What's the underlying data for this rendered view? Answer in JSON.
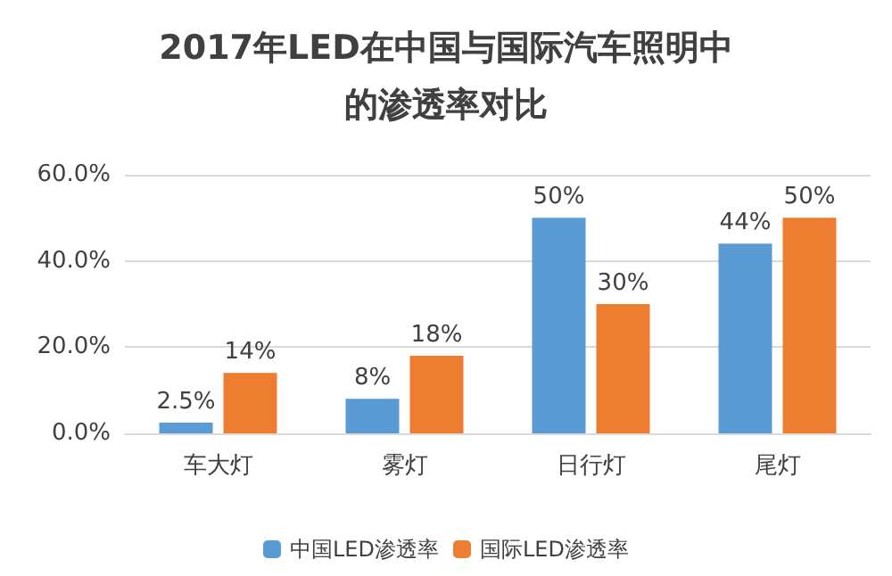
{
  "chart_data": {
    "type": "bar",
    "title": "2017年LED在中国与国际汽车照明中的渗透率对比",
    "categories": [
      "车大灯",
      "雾灯",
      "日行灯",
      "尾灯"
    ],
    "series": [
      {
        "name": "中国LED渗透率",
        "color": "#5b9bd5",
        "values": [
          2.5,
          8,
          50,
          44
        ],
        "value_labels": [
          "2.5%",
          "8%",
          "50%",
          "44%"
        ]
      },
      {
        "name": "国际LED渗透率",
        "color": "#ed7d31",
        "values": [
          14,
          18,
          30,
          50
        ],
        "value_labels": [
          "14%",
          "18%",
          "30%",
          "50%"
        ]
      }
    ],
    "ylim": [
      0,
      60
    ],
    "yticks": [
      {
        "value": 0,
        "label": "0.0%"
      },
      {
        "value": 20,
        "label": "20.0%"
      },
      {
        "value": 40,
        "label": "40.0%"
      },
      {
        "value": 60,
        "label": "60.0%"
      }
    ],
    "grid": "y",
    "legend": "bottom"
  }
}
